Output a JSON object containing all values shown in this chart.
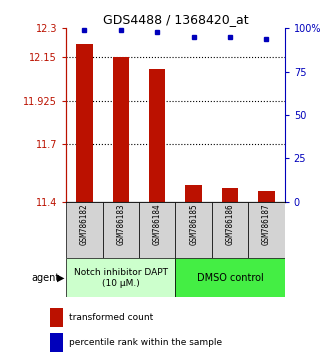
{
  "title": "GDS4488 / 1368420_at",
  "samples": [
    "GSM786182",
    "GSM786183",
    "GSM786184",
    "GSM786185",
    "GSM786186",
    "GSM786187"
  ],
  "bar_values": [
    12.22,
    12.15,
    12.09,
    11.485,
    11.47,
    11.455
  ],
  "percentile_values": [
    99,
    99,
    98,
    95,
    95,
    94
  ],
  "ylim_left": [
    11.4,
    12.3
  ],
  "ylim_right": [
    0,
    100
  ],
  "yticks_left": [
    11.4,
    11.7,
    11.925,
    12.15,
    12.3
  ],
  "ytick_labels_left": [
    "11.4",
    "11.7",
    "11.925",
    "12.15",
    "12.3"
  ],
  "yticks_right": [
    0,
    25,
    50,
    75,
    100
  ],
  "ytick_labels_right": [
    "0",
    "25",
    "50",
    "75",
    "100%"
  ],
  "bar_color": "#bb1100",
  "dot_color": "#0000bb",
  "group1_label": "Notch inhibitor DAPT\n(10 μM.)",
  "group2_label": "DMSO control",
  "group1_color": "#ccffcc",
  "group2_color": "#44ee44",
  "agent_label": "agent",
  "legend_bar_label": "transformed count",
  "legend_dot_label": "percentile rank within the sample",
  "group1_samples": [
    0,
    1,
    2
  ],
  "group2_samples": [
    3,
    4,
    5
  ],
  "bar_width": 0.45,
  "sample_box_color": "#d3d3d3",
  "fig_width": 3.31,
  "fig_height": 3.54,
  "dpi": 100
}
